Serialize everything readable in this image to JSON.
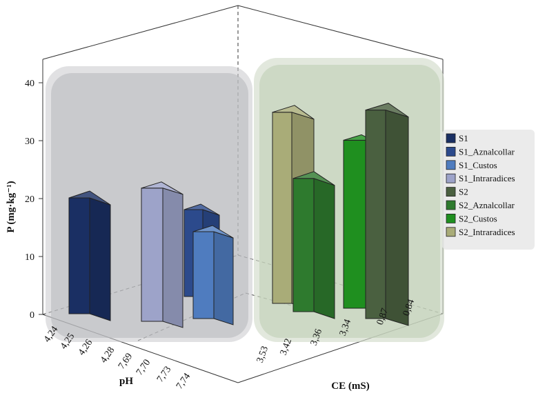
{
  "chart_data": {
    "type": "bar",
    "title": "",
    "ylabel": "P (mg·kg⁻¹)",
    "ylim": [
      0,
      40
    ],
    "yticks": [
      0,
      10,
      20,
      30,
      40
    ],
    "x_axis": {
      "label": "pH",
      "ticks": [
        "4,24",
        "4,25",
        "4,26",
        "4,28",
        "7,69",
        "7,70",
        "7,73",
        "7,74"
      ]
    },
    "z_axis": {
      "label": "CE (mS)",
      "ticks": [
        "3,53",
        "3,42",
        "3,36",
        "3,34",
        "0,87",
        "0,84"
      ]
    },
    "grid": false,
    "legend_position": "right",
    "series": [
      {
        "name": "S1",
        "value": 20,
        "color": "#1a2f63"
      },
      {
        "name": "S1_Aznalcollar",
        "value": 15,
        "color": "#2c4a8c"
      },
      {
        "name": "S1_Custos",
        "value": 15,
        "color": "#4f7cbf"
      },
      {
        "name": "S1_Intraradices",
        "value": 23,
        "color": "#9da3c9"
      },
      {
        "name": "S2",
        "value": 36,
        "color": "#4a6040"
      },
      {
        "name": "S2_Aznalcollar",
        "value": 23,
        "color": "#2e7a2e"
      },
      {
        "name": "S2_Custos",
        "value": 29,
        "color": "#1f8f1f"
      },
      {
        "name": "S2_Intraradices",
        "value": 33,
        "color": "#a9ac78"
      }
    ]
  }
}
